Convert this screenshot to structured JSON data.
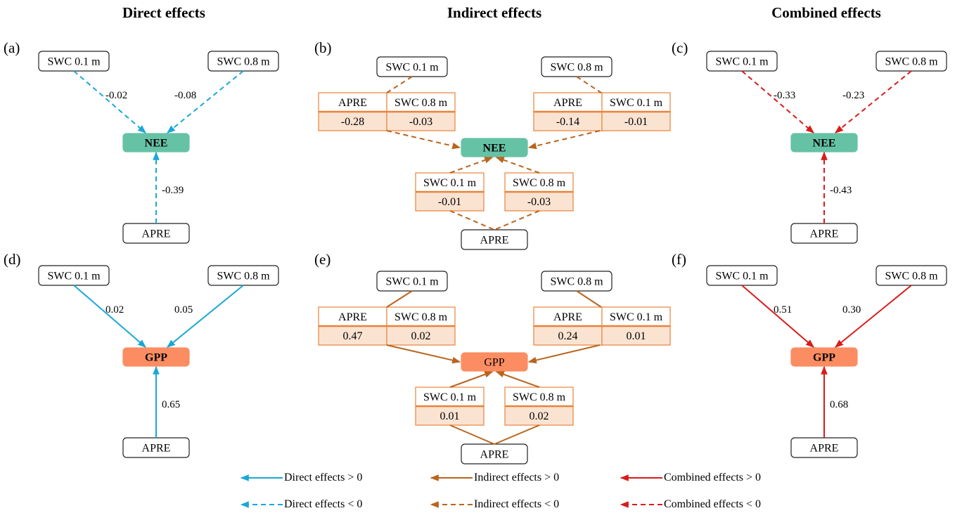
{
  "column_titles": [
    "Direct effects",
    "Indirect effects",
    "Combined effects"
  ],
  "panel_labels": [
    "(a)",
    "(b)",
    "(c)",
    "(d)",
    "(e)",
    "(f)"
  ],
  "colors": {
    "direct": "#1aa7d6",
    "indirect": "#b8651e",
    "combined": "#d81b1b",
    "nee_fill": "#66c2a5",
    "gpp_fill": "#fc8d62",
    "table_border": "#e8833a",
    "table_value_fill": "#fbe3d2"
  },
  "node_labels": {
    "swc01": "SWC 0.1 m",
    "swc08": "SWC 0.8 m",
    "apre": "APRE",
    "nee": "NEE",
    "gpp": "GPP"
  },
  "panels": {
    "a": {
      "target": "NEE",
      "type": "direct",
      "sign": "neg",
      "swc01": "-0.02",
      "swc08": "-0.08",
      "apre": "-0.39"
    },
    "c": {
      "target": "NEE",
      "type": "combined",
      "sign": "neg",
      "swc01": "-0.33",
      "swc08": "-0.23",
      "apre": "-0.43"
    },
    "d": {
      "target": "GPP",
      "type": "direct",
      "sign": "pos",
      "swc01": "0.02",
      "swc08": "0.05",
      "apre": "0.65"
    },
    "f": {
      "target": "GPP",
      "type": "combined",
      "sign": "pos",
      "swc01": "0.51",
      "swc08": "0.30",
      "apre": "0.68"
    },
    "b": {
      "target": "NEE",
      "sign": "neg",
      "left_source": "SWC 0.1 m",
      "left_table": {
        "headers": [
          "APRE",
          "SWC 0.8 m"
        ],
        "values": [
          "-0.28",
          "-0.03"
        ]
      },
      "right_source": "SWC 0.8 m",
      "right_table": {
        "headers": [
          "APRE",
          "SWC 0.1 m"
        ],
        "values": [
          "-0.14",
          "-0.01"
        ]
      },
      "bottom_source": "APRE",
      "bottom_left": {
        "header": "SWC 0.1 m",
        "value": "-0.01"
      },
      "bottom_right": {
        "header": "SWC 0.8 m",
        "value": "-0.03"
      }
    },
    "e": {
      "target": "GPP",
      "sign": "pos",
      "left_source": "SWC 0.1 m",
      "left_table": {
        "headers": [
          "APRE",
          "SWC 0.8 m"
        ],
        "values": [
          "0.47",
          "0.02"
        ]
      },
      "right_source": "SWC 0.8 m",
      "right_table": {
        "headers": [
          "APRE",
          "SWC 0.1 m"
        ],
        "values": [
          "0.24",
          "0.01"
        ]
      },
      "bottom_source": "APRE",
      "bottom_left": {
        "header": "SWC 0.1 m",
        "value": "0.01"
      },
      "bottom_right": {
        "header": "SWC 0.8 m",
        "value": "0.02"
      }
    }
  },
  "legend": [
    {
      "label": "Direct effects > 0",
      "type": "direct",
      "dashed": false
    },
    {
      "label": "Indirect effects > 0",
      "type": "indirect",
      "dashed": false
    },
    {
      "label": "Combined effects > 0",
      "type": "combined",
      "dashed": false
    },
    {
      "label": "Direct effects < 0",
      "type": "direct",
      "dashed": true
    },
    {
      "label": "Indirect effects < 0",
      "type": "indirect",
      "dashed": true
    },
    {
      "label": "Combined effects < 0",
      "type": "combined",
      "dashed": true
    }
  ]
}
